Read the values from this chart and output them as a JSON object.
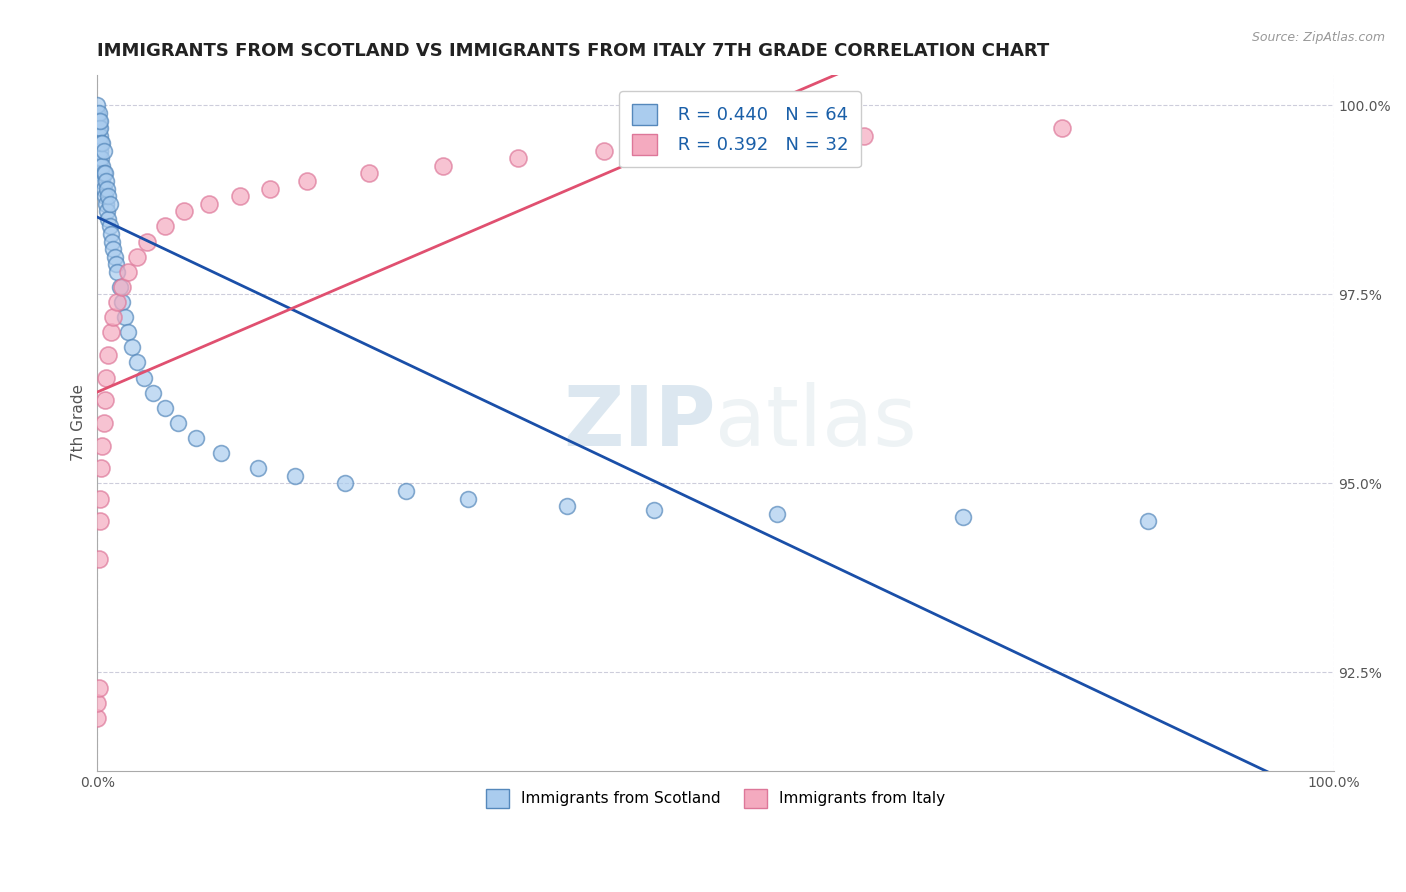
{
  "title": "IMMIGRANTS FROM SCOTLAND VS IMMIGRANTS FROM ITALY 7TH GRADE CORRELATION CHART",
  "source": "Source: ZipAtlas.com",
  "ylabel": "7th Grade",
  "xlim": [
    0.0,
    1.0
  ],
  "ylim": [
    0.912,
    1.004
  ],
  "legend_entries": [
    {
      "label": "Immigrants from Scotland",
      "color": "#aaccee",
      "edge": "#5588bb",
      "R": "0.440",
      "N": "64"
    },
    {
      "label": "Immigrants from Italy",
      "color": "#f4aabf",
      "edge": "#dd7799",
      "R": "0.392",
      "N": "32"
    }
  ],
  "trendline_scotland_color": "#1a4fa8",
  "trendline_italy_color": "#e05070",
  "background": "#ffffff",
  "grid_color": "#c8c8d8",
  "watermark_zip": "ZIP",
  "watermark_atlas": "atlas",
  "scotland_x": [
    0.0,
    0.0,
    0.0,
    0.0,
    0.0,
    0.0,
    0.0,
    0.001,
    0.001,
    0.001,
    0.001,
    0.001,
    0.002,
    0.002,
    0.002,
    0.002,
    0.002,
    0.003,
    0.003,
    0.003,
    0.004,
    0.004,
    0.004,
    0.005,
    0.005,
    0.005,
    0.006,
    0.006,
    0.007,
    0.007,
    0.008,
    0.008,
    0.009,
    0.009,
    0.01,
    0.01,
    0.011,
    0.012,
    0.013,
    0.014,
    0.015,
    0.016,
    0.018,
    0.02,
    0.022,
    0.025,
    0.028,
    0.032,
    0.038,
    0.045,
    0.055,
    0.065,
    0.08,
    0.1,
    0.13,
    0.16,
    0.2,
    0.25,
    0.3,
    0.38,
    0.45,
    0.55,
    0.7,
    0.85
  ],
  "scotland_y": [
    0.994,
    0.996,
    0.997,
    0.998,
    0.9985,
    0.999,
    1.0,
    0.993,
    0.995,
    0.997,
    0.998,
    0.999,
    0.992,
    0.994,
    0.996,
    0.997,
    0.998,
    0.991,
    0.993,
    0.995,
    0.99,
    0.992,
    0.995,
    0.989,
    0.991,
    0.994,
    0.988,
    0.991,
    0.987,
    0.99,
    0.986,
    0.989,
    0.985,
    0.988,
    0.984,
    0.987,
    0.983,
    0.982,
    0.981,
    0.98,
    0.979,
    0.978,
    0.976,
    0.974,
    0.972,
    0.97,
    0.968,
    0.966,
    0.964,
    0.962,
    0.96,
    0.958,
    0.956,
    0.954,
    0.952,
    0.951,
    0.95,
    0.949,
    0.948,
    0.947,
    0.9465,
    0.946,
    0.9455,
    0.945
  ],
  "italy_x": [
    0.0,
    0.0,
    0.001,
    0.001,
    0.002,
    0.002,
    0.003,
    0.004,
    0.005,
    0.006,
    0.007,
    0.009,
    0.011,
    0.013,
    0.016,
    0.02,
    0.025,
    0.032,
    0.04,
    0.055,
    0.07,
    0.09,
    0.115,
    0.14,
    0.17,
    0.22,
    0.28,
    0.34,
    0.41,
    0.5,
    0.62,
    0.78
  ],
  "italy_y": [
    0.919,
    0.921,
    0.923,
    0.94,
    0.945,
    0.948,
    0.952,
    0.955,
    0.958,
    0.961,
    0.964,
    0.967,
    0.97,
    0.972,
    0.974,
    0.976,
    0.978,
    0.98,
    0.982,
    0.984,
    0.986,
    0.987,
    0.988,
    0.989,
    0.99,
    0.991,
    0.992,
    0.993,
    0.994,
    0.995,
    0.996,
    0.997
  ]
}
